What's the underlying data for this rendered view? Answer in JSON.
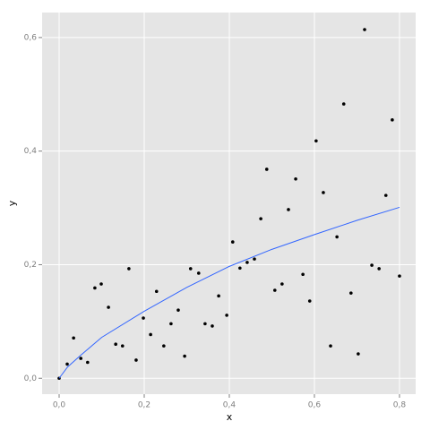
{
  "chart_data": {
    "type": "scatter",
    "xlabel": "x",
    "ylabel": "y",
    "xlim": [
      -0.04,
      0.838
    ],
    "ylim": [
      -0.028,
      0.644
    ],
    "xticks": [
      {
        "value": 0,
        "label": "0,0"
      },
      {
        "value": 0.2,
        "label": "0,2"
      },
      {
        "value": 0.4,
        "label": "0,4"
      },
      {
        "value": 0.6,
        "label": "0,6"
      },
      {
        "value": 0.8,
        "label": "0,8"
      }
    ],
    "yticks": [
      {
        "value": 0,
        "label": "0,0"
      },
      {
        "value": 0.2,
        "label": "0,2"
      },
      {
        "value": 0.4,
        "label": "0,4"
      },
      {
        "value": 0.6,
        "label": "0,6"
      }
    ],
    "grid": true,
    "series": [
      {
        "type": "scatter",
        "color": "#000000",
        "x": [
          0,
          0.019,
          0.034,
          0.051,
          0.067,
          0.084,
          0.099,
          0.116,
          0.133,
          0.149,
          0.164,
          0.181,
          0.198,
          0.215,
          0.229,
          0.246,
          0.263,
          0.28,
          0.295,
          0.309,
          0.328,
          0.343,
          0.36,
          0.375,
          0.394,
          0.408,
          0.425,
          0.442,
          0.459,
          0.474,
          0.488,
          0.507,
          0.524,
          0.539,
          0.556,
          0.573,
          0.589,
          0.604,
          0.621,
          0.638,
          0.653,
          0.669,
          0.686,
          0.703,
          0.718,
          0.735,
          0.752,
          0.768,
          0.783,
          0.8
        ],
        "y": [
          0,
          0.025,
          0.071,
          0.035,
          0.028,
          0.159,
          0.166,
          0.125,
          0.06,
          0.057,
          0.193,
          0.032,
          0.106,
          0.077,
          0.153,
          0.057,
          0.096,
          0.12,
          0.039,
          0.193,
          0.185,
          0.096,
          0.092,
          0.145,
          0.111,
          0.24,
          0.194,
          0.204,
          0.21,
          0.281,
          0.368,
          0.155,
          0.166,
          0.297,
          0.351,
          0.183,
          0.136,
          0.418,
          0.327,
          0.057,
          0.249,
          0.483,
          0.15,
          0.043,
          0.614,
          0.199,
          0.193,
          0.322,
          0.455,
          0.18
        ]
      },
      {
        "type": "line",
        "color": "#3366ff",
        "x": [
          0,
          0.02,
          0.05,
          0.1,
          0.2,
          0.3,
          0.4,
          0.5,
          0.6,
          0.7,
          0.8
        ],
        "y": [
          0,
          0.02,
          0.04,
          0.072,
          0.118,
          0.16,
          0.197,
          0.227,
          0.253,
          0.278,
          0.301
        ]
      }
    ]
  }
}
